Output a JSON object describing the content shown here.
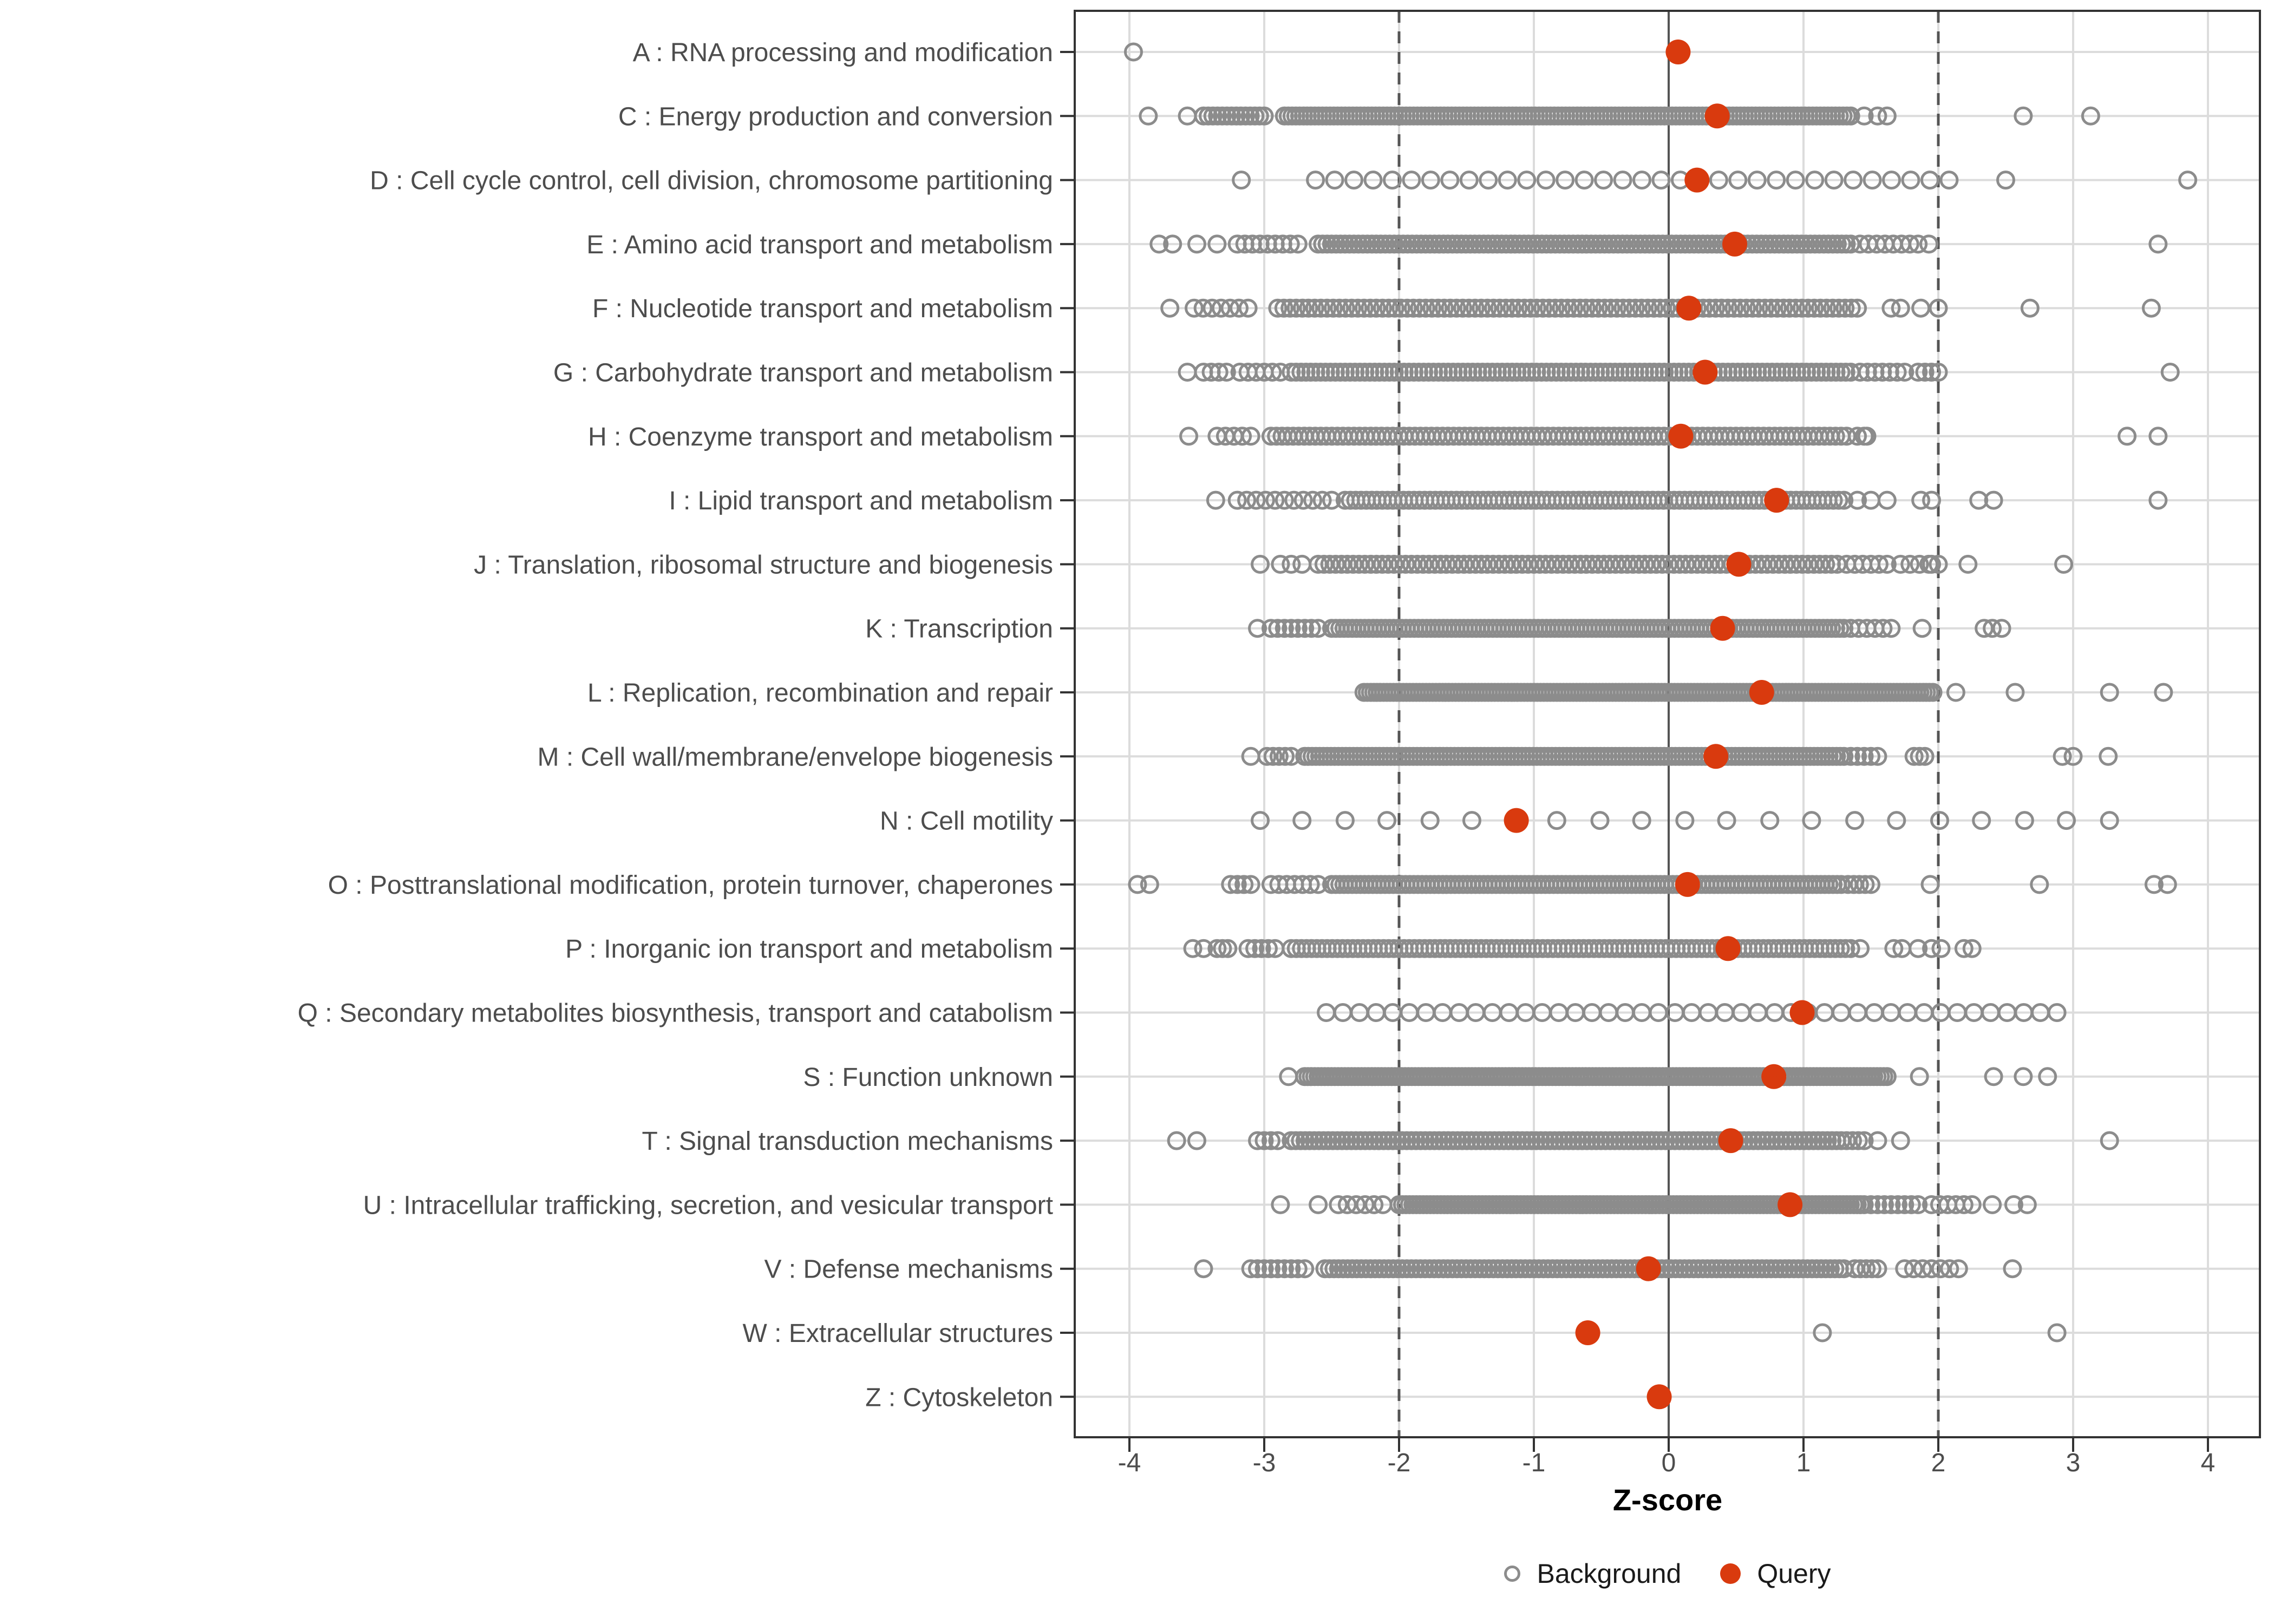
{
  "chart_data": {
    "type": "scatter",
    "subtype": "horizontal-strip-dot-plot",
    "title": "",
    "xlabel": "Z-score",
    "ylabel": "",
    "x_ticks": [
      -4,
      -3,
      -2,
      -1,
      0,
      1,
      2,
      3,
      4
    ],
    "xlim": [
      -4.4,
      4.4
    ],
    "zero_line": 0,
    "dashed_lines": [
      -2,
      2
    ],
    "grid": true,
    "legend": {
      "background": "Background",
      "query": "Query",
      "position": "bottom"
    },
    "colors": {
      "query": "#d93a0e",
      "background_stroke": "#8c8c8c",
      "grid": "#dcdcdc",
      "ref_line": "#545454",
      "axis_text": "#4d4d4d",
      "panel_border": "#333333"
    },
    "categories": [
      {
        "code": "A",
        "label": "A : RNA processing and modification",
        "query": 0.07,
        "bg_points": [
          -3.97
        ],
        "bg_bands": []
      },
      {
        "code": "C",
        "label": "C : Energy production and conversion",
        "query": 0.36,
        "bg_points": [
          -3.86,
          -3.57,
          1.45,
          1.55,
          1.62,
          2.63,
          3.13
        ],
        "bg_bands": [
          [
            -3.45,
            -3.0,
            14
          ],
          [
            -2.85,
            1.35,
            150
          ]
        ]
      },
      {
        "code": "D",
        "label": "D : Cell cycle control, cell division, chromosome partitioning",
        "query": 0.21,
        "bg_points": [
          -3.17,
          2.5,
          3.85
        ],
        "bg_bands": [
          [
            -2.62,
            2.08,
            34
          ]
        ]
      },
      {
        "code": "E",
        "label": "E : Amino acid transport and metabolism",
        "query": 0.49,
        "bg_points": [
          -3.78,
          -3.68,
          -3.5,
          -3.35,
          1.93,
          3.63
        ],
        "bg_bands": [
          [
            -3.2,
            -2.75,
            9
          ],
          [
            -2.6,
            1.35,
            120
          ],
          [
            1.42,
            1.85,
            8
          ]
        ]
      },
      {
        "code": "F",
        "label": "F : Nucleotide transport and metabolism",
        "query": 0.15,
        "bg_points": [
          -3.7,
          1.65,
          1.72,
          1.87,
          2.0,
          2.68,
          3.58
        ],
        "bg_bands": [
          [
            -3.52,
            -3.12,
            7
          ],
          [
            -2.9,
            1.4,
            95
          ]
        ]
      },
      {
        "code": "G",
        "label": "G : Carbohydrate transport and metabolism",
        "query": 0.27,
        "bg_points": [
          -3.57,
          3.72
        ],
        "bg_bands": [
          [
            -3.45,
            -3.28,
            4
          ],
          [
            -3.18,
            -2.88,
            6
          ],
          [
            -2.8,
            1.35,
            115
          ],
          [
            1.42,
            1.75,
            7
          ],
          [
            1.85,
            2.0,
            4
          ]
        ]
      },
      {
        "code": "H",
        "label": "H : Coenzyme transport and metabolism",
        "query": 0.09,
        "bg_points": [
          -3.56,
          1.4,
          1.45,
          1.47,
          3.4,
          3.63
        ],
        "bg_bands": [
          [
            -3.35,
            -3.1,
            5
          ],
          [
            -2.95,
            1.32,
            105
          ]
        ]
      },
      {
        "code": "I",
        "label": "I : Lipid transport and metabolism",
        "query": 0.8,
        "bg_points": [
          -3.36,
          1.4,
          1.5,
          1.62,
          1.87,
          1.95,
          2.3,
          2.41,
          3.63
        ],
        "bg_bands": [
          [
            -3.2,
            -2.5,
            11
          ],
          [
            -2.4,
            1.3,
            95
          ]
        ]
      },
      {
        "code": "J",
        "label": "J : Translation, ribosomal structure and biogenesis",
        "query": 0.52,
        "bg_points": [
          -3.03,
          1.95,
          2.22,
          2.93
        ],
        "bg_bands": [
          [
            -2.88,
            -2.72,
            3
          ],
          [
            -2.6,
            1.25,
            90
          ],
          [
            1.32,
            1.62,
            6
          ],
          [
            1.72,
            2.0,
            5
          ]
        ]
      },
      {
        "code": "K",
        "label": "K : Transcription",
        "query": 0.4,
        "bg_points": [
          -3.05,
          1.88,
          2.34,
          2.4,
          2.47
        ],
        "bg_bands": [
          [
            -2.95,
            -2.6,
            8
          ],
          [
            -2.5,
            1.3,
            125
          ],
          [
            1.35,
            1.65,
            6
          ]
        ]
      },
      {
        "code": "L",
        "label": "L : Replication, recombination and repair",
        "query": 0.69,
        "bg_points": [
          2.13,
          2.57,
          3.27,
          3.67
        ],
        "bg_bands": [
          [
            -2.26,
            1.96,
            175
          ]
        ]
      },
      {
        "code": "M",
        "label": "M : Cell wall/membrane/envelope biogenesis",
        "query": 0.35,
        "bg_points": [
          -3.1,
          2.92,
          3.0,
          3.26
        ],
        "bg_bands": [
          [
            -2.98,
            -2.8,
            5
          ],
          [
            -2.7,
            1.3,
            145
          ],
          [
            1.35,
            1.55,
            5
          ],
          [
            1.82,
            1.9,
            3
          ]
        ]
      },
      {
        "code": "N",
        "label": "N : Cell motility",
        "query": -1.13,
        "bg_points": [
          -3.03,
          -2.72,
          -2.4,
          -2.09,
          -1.77,
          -1.46,
          -1.14,
          -0.83,
          -0.51,
          -0.2,
          0.12,
          0.43,
          0.75,
          1.06,
          1.38,
          1.69,
          2.01,
          2.32,
          2.64,
          2.95,
          3.27
        ],
        "bg_bands": []
      },
      {
        "code": "O",
        "label": "O : Posttranslational modification, protein turnover, chaperones",
        "query": 0.14,
        "bg_points": [
          -3.94,
          -3.85,
          1.94,
          2.75,
          3.6,
          3.7
        ],
        "bg_bands": [
          [
            -3.25,
            -3.1,
            4
          ],
          [
            -2.95,
            -2.6,
            7
          ],
          [
            -2.5,
            1.28,
            125
          ],
          [
            1.33,
            1.5,
            5
          ]
        ]
      },
      {
        "code": "P",
        "label": "P : Inorganic ion transport and metabolism",
        "query": 0.44,
        "bg_points": [
          -3.53,
          -3.45,
          1.42,
          1.67,
          1.73,
          1.85,
          1.95,
          2.02,
          2.19,
          2.25
        ],
        "bg_bands": [
          [
            -3.35,
            -3.27,
            3
          ],
          [
            -3.12,
            -2.92,
            5
          ],
          [
            -2.8,
            1.35,
            110
          ]
        ]
      },
      {
        "code": "Q",
        "label": "Q : Secondary metabolites biosynthesis, transport and catabolism",
        "query": 0.99,
        "bg_points": [],
        "bg_bands": [
          [
            -2.54,
            2.88,
            45
          ]
        ]
      },
      {
        "code": "S",
        "label": "S : Function unknown",
        "query": 0.78,
        "bg_points": [
          -2.82,
          1.86,
          2.41,
          2.63,
          2.81
        ],
        "bg_bands": [
          [
            -2.7,
            1.62,
            175
          ]
        ]
      },
      {
        "code": "T",
        "label": "T : Signal transduction mechanisms",
        "query": 0.46,
        "bg_points": [
          -3.65,
          -3.5,
          1.55,
          1.72,
          3.27
        ],
        "bg_bands": [
          [
            -3.05,
            -2.9,
            4
          ],
          [
            -2.8,
            1.28,
            120
          ],
          [
            1.32,
            1.45,
            4
          ]
        ]
      },
      {
        "code": "U",
        "label": "U : Intracellular trafficking, secretion, and vesicular transport",
        "query": 0.9,
        "bg_points": [
          -2.88,
          -2.6,
          2.4,
          2.56,
          2.66
        ],
        "bg_bands": [
          [
            -2.45,
            -2.12,
            6
          ],
          [
            -2.0,
            1.45,
            135
          ],
          [
            1.5,
            1.85,
            8
          ],
          [
            1.95,
            2.25,
            6
          ]
        ]
      },
      {
        "code": "V",
        "label": "V : Defense mechanisms",
        "query": -0.15,
        "bg_points": [
          -3.45,
          2.55
        ],
        "bg_bands": [
          [
            -3.1,
            -2.9,
            5
          ],
          [
            -2.85,
            -2.7,
            4
          ],
          [
            -2.55,
            1.3,
            115
          ],
          [
            1.38,
            1.55,
            5
          ],
          [
            1.75,
            2.15,
            7
          ]
        ]
      },
      {
        "code": "W",
        "label": "W : Extracellular structures",
        "query": -0.6,
        "bg_points": [
          1.14,
          2.88
        ],
        "bg_bands": []
      },
      {
        "code": "Z",
        "label": "Z : Cytoskeleton",
        "query": -0.07,
        "bg_points": [],
        "bg_bands": []
      }
    ]
  }
}
